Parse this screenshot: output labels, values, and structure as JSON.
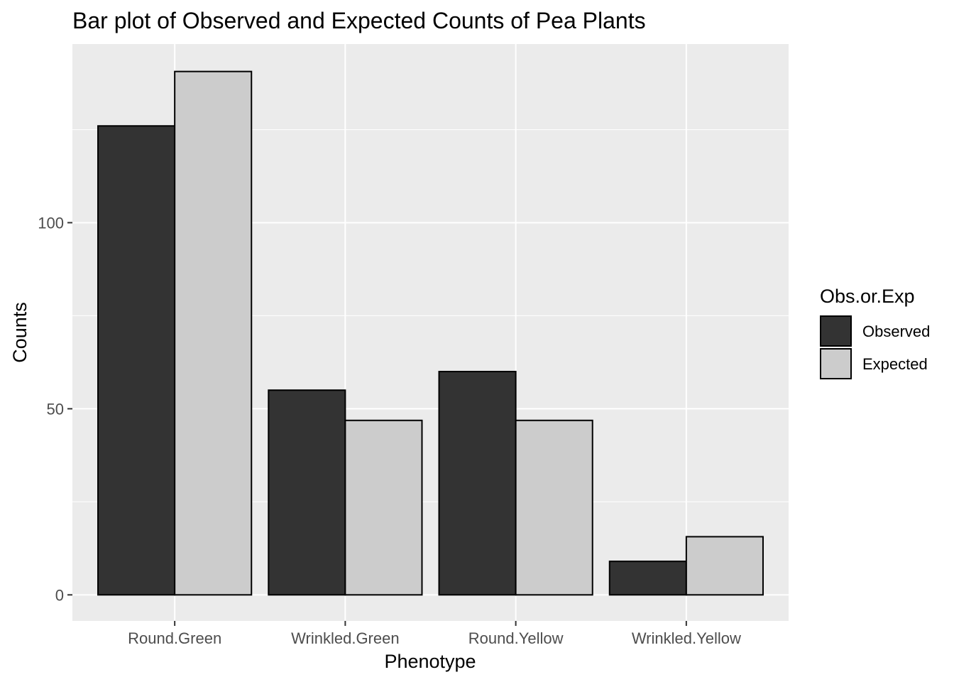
{
  "chart_data": {
    "type": "bar",
    "title": "Bar plot of Observed and Expected Counts of Pea Plants",
    "xlabel": "Phenotype",
    "ylabel": "Counts",
    "categories": [
      "Round.Green",
      "Wrinkled.Green",
      "Round.Yellow",
      "Wrinkled.Yellow"
    ],
    "series": [
      {
        "name": "Observed",
        "values": [
          126,
          55,
          60,
          9
        ],
        "color": "#333333"
      },
      {
        "name": "Expected",
        "values": [
          140.625,
          46.875,
          46.875,
          15.625
        ],
        "color": "#cccccc"
      }
    ],
    "ylim": [
      -7,
      148
    ],
    "yticks": [
      0,
      50,
      100
    ],
    "grid": true,
    "panel_background": "#ebebeb",
    "bar_outline": "#000000",
    "legend": {
      "title": "Obs.or.Exp",
      "position": "right"
    }
  }
}
